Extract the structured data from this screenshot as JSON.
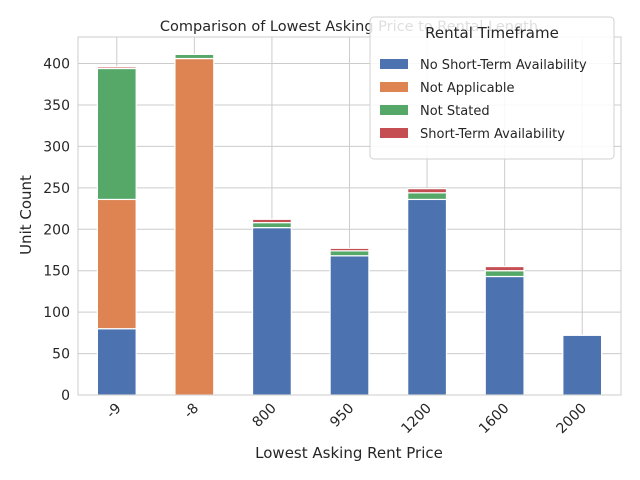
{
  "chart_data": {
    "type": "bar",
    "stacked": true,
    "title": "Comparison of Lowest Asking Price to Rental Length",
    "xlabel": "Lowest Asking Rent Price",
    "ylabel": "Unit Count",
    "categories": [
      "-9",
      "-8",
      "800",
      "950",
      "1200",
      "1600",
      "2000"
    ],
    "ylim": [
      0,
      432
    ],
    "yticks": [
      0,
      50,
      100,
      150,
      200,
      250,
      300,
      350,
      400
    ],
    "grid": true,
    "legend": {
      "title": "Rental Timeframe",
      "placement": "top-right"
    },
    "series": [
      {
        "name": "No Short-Term Availability",
        "color": "#4c72b0",
        "values": [
          80,
          0,
          202,
          168,
          236,
          143,
          72
        ]
      },
      {
        "name": "Not Applicable",
        "color": "#dd8452",
        "values": [
          156,
          406,
          0,
          0,
          0,
          0,
          0
        ]
      },
      {
        "name": "Not Stated",
        "color": "#55a868",
        "values": [
          158,
          5,
          6,
          6,
          8,
          7,
          0
        ]
      },
      {
        "name": "Short-Term Availability",
        "color": "#c44e52",
        "values": [
          2,
          0,
          4,
          3,
          5,
          5,
          0
        ]
      }
    ]
  }
}
